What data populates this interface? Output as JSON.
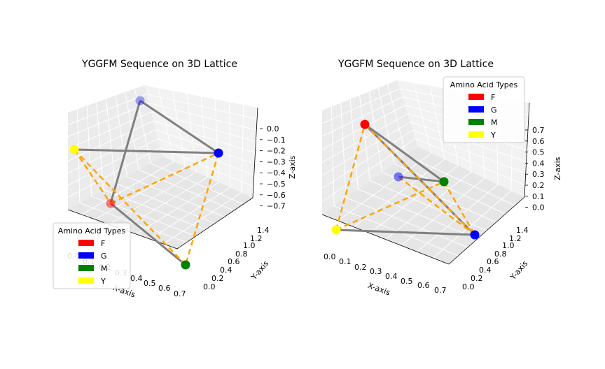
{
  "chart_data": [
    {
      "type": "scatter",
      "title": "YGGFM Sequence on 3D Lattice",
      "xlabel": "X-axis",
      "ylabel": "Y-axis",
      "zlabel": "Z-axis",
      "x_ticks": [
        "0.0",
        "0.1",
        "0.2",
        "0.3",
        "0.4",
        "0.5",
        "0.6",
        "0.7"
      ],
      "y_ticks": [
        "0.0",
        "0.2",
        "0.4",
        "0.6",
        "0.8",
        "1.0",
        "1.2",
        "1.4"
      ],
      "z_ticks": [
        "0.0",
        "−0.1",
        "−0.2",
        "−0.3",
        "−0.4",
        "−0.5",
        "−0.6",
        "−0.7"
      ],
      "legend": {
        "title": "Amino Acid Types",
        "entries": [
          {
            "label": "F",
            "color": "#ff0000"
          },
          {
            "label": "G",
            "color": "#0000ff"
          },
          {
            "label": "M",
            "color": "#008000"
          },
          {
            "label": "Y",
            "color": "#ffff00"
          }
        ],
        "placement": "lower-left"
      },
      "points": [
        {
          "residue": "Y",
          "color": "#ffff00"
        },
        {
          "residue": "G",
          "color": "#0000ff"
        },
        {
          "residue": "G",
          "color": "#0000ff"
        },
        {
          "residue": "F",
          "color": "#ff0000"
        },
        {
          "residue": "M",
          "color": "#008000"
        }
      ],
      "backbone_color": "#808080",
      "contact_color": "#ffa500"
    },
    {
      "type": "scatter",
      "title": "YGGFM Sequence on 3D Lattice",
      "xlabel": "X-axis",
      "ylabel": "Y-axis",
      "zlabel": "Z-axis",
      "x_ticks": [
        "0.0",
        "0.1",
        "0.2",
        "0.3",
        "0.4",
        "0.5",
        "0.6",
        "0.7"
      ],
      "y_ticks": [
        "0.0",
        "0.2",
        "0.4",
        "0.6",
        "0.8",
        "1.0",
        "1.2",
        "1.4"
      ],
      "z_ticks": [
        "0.0",
        "0.1",
        "0.2",
        "0.3",
        "0.4",
        "0.5",
        "0.6",
        "0.7"
      ],
      "legend": {
        "title": "Amino Acid Types",
        "entries": [
          {
            "label": "F",
            "color": "#ff0000"
          },
          {
            "label": "G",
            "color": "#0000ff"
          },
          {
            "label": "M",
            "color": "#008000"
          },
          {
            "label": "Y",
            "color": "#ffff00"
          }
        ],
        "placement": "upper-right"
      },
      "points": [
        {
          "residue": "Y",
          "color": "#ffff00"
        },
        {
          "residue": "G",
          "color": "#0000ff"
        },
        {
          "residue": "G",
          "color": "#0000ff"
        },
        {
          "residue": "F",
          "color": "#ff0000"
        },
        {
          "residue": "M",
          "color": "#008000"
        }
      ],
      "backbone_color": "#808080",
      "contact_color": "#ffa500"
    }
  ]
}
